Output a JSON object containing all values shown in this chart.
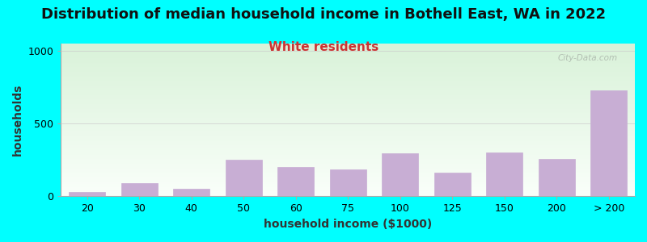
{
  "categories": [
    "20",
    "30",
    "40",
    "50",
    "60",
    "75",
    "100",
    "125",
    "150",
    "200",
    "> 200"
  ],
  "values": [
    30,
    90,
    50,
    250,
    200,
    185,
    295,
    165,
    300,
    255,
    730
  ],
  "bar_color": "#c8aed4",
  "bar_edge_color": "#c8aed4",
  "title": "Distribution of median household income in Bothell East, WA in 2022",
  "subtitle": "White residents",
  "subtitle_color": "#cc3333",
  "xlabel": "household income ($1000)",
  "ylabel": "households",
  "ylim": [
    0,
    1050
  ],
  "yticks": [
    0,
    500,
    1000
  ],
  "outer_bg": "#00ffff",
  "title_fontsize": 13,
  "subtitle_fontsize": 11,
  "label_fontsize": 10,
  "tick_fontsize": 9,
  "watermark": "City-Data.com"
}
